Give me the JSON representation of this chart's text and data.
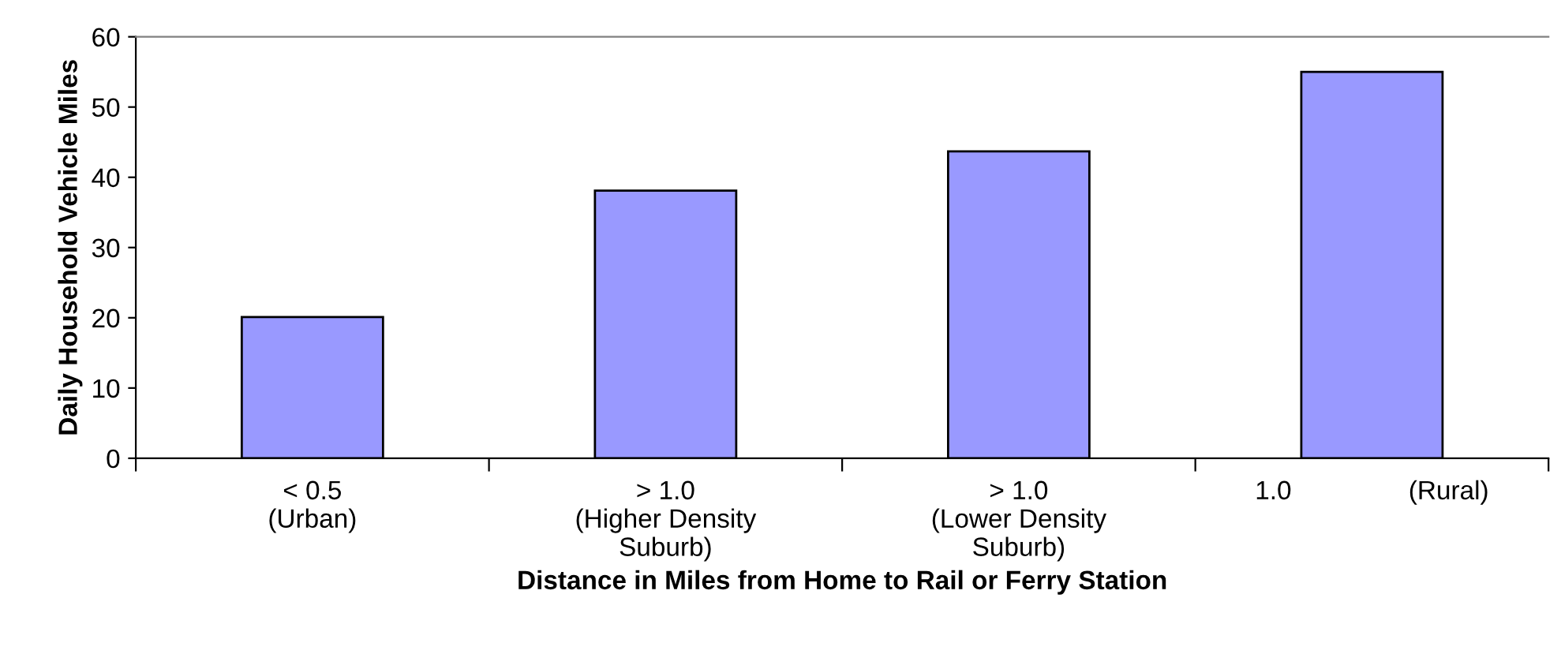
{
  "chart_data": {
    "type": "bar",
    "xlabel": "Distance in Miles from Home to Rail or Ferry Station",
    "ylabel": "Daily Household Vehicle Miles",
    "categories": [
      "< 0.5\n(Urban)",
      "> 1.0\n(Higher Density\nSuburb)",
      "> 1.0\n(Lower Density\nSuburb)",
      "1.0                (Rural)"
    ],
    "values": [
      20.1,
      38.1,
      43.7,
      55.0
    ],
    "color": "#9999ff",
    "ylim": [
      0,
      60
    ],
    "yticks": [
      0,
      10,
      20,
      30,
      40,
      50,
      60
    ],
    "grid": false,
    "legend": false
  }
}
